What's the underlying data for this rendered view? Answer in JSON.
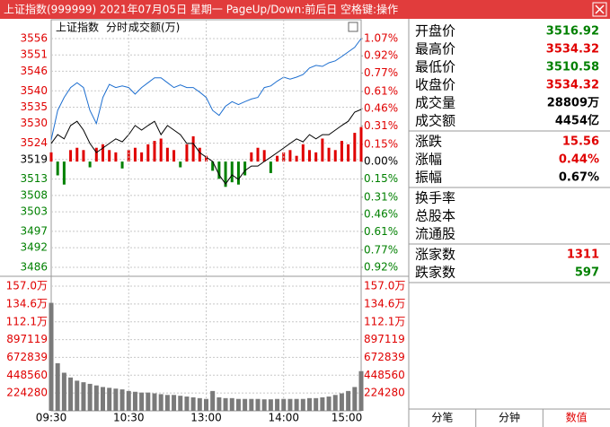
{
  "title_bar": "上证指数(999999)  2021年07月05日 星期一  PageUp/Down:前后日  空格键:操作",
  "chart_data": [
    {
      "type": "line",
      "annotations": [
        "上证指数",
        "分时",
        "成交额(万)"
      ],
      "x": [
        0,
        5,
        10,
        15,
        20,
        25,
        30,
        35,
        40,
        45,
        50,
        55,
        60,
        65,
        70,
        75,
        80,
        85,
        90,
        95,
        100,
        105,
        110,
        115,
        120,
        125,
        130,
        135,
        140,
        145,
        150,
        155,
        160,
        165,
        170,
        175,
        180,
        185,
        190,
        195,
        200,
        205,
        210,
        215,
        220,
        225,
        230,
        235,
        240
      ],
      "xlim": [
        0,
        240
      ],
      "ylim": [
        3486,
        3556
      ],
      "yticks": [
        3556,
        3551,
        3546,
        3540,
        3535,
        3530,
        3524,
        3519,
        3513,
        3508,
        3503,
        3497,
        3492,
        3486
      ],
      "y2lim": [
        -0.92,
        1.07
      ],
      "y2ticks": [
        {
          "value": 1.07,
          "label": "1.07%"
        },
        {
          "value": 0.92,
          "label": "0.92%"
        },
        {
          "value": 0.77,
          "label": "0.77%"
        },
        {
          "value": 0.61,
          "label": "0.61%"
        },
        {
          "value": 0.46,
          "label": "0.46%"
        },
        {
          "value": 0.31,
          "label": "0.31%"
        },
        {
          "value": 0.15,
          "label": "0.15%"
        },
        {
          "value": 0,
          "label": "0.00%"
        },
        {
          "value": -0.15,
          "label": "0.15%"
        },
        {
          "value": -0.31,
          "label": "0.31%"
        },
        {
          "value": -0.46,
          "label": "0.46%"
        },
        {
          "value": -0.61,
          "label": "0.61%"
        },
        {
          "value": -0.77,
          "label": "0.77%"
        },
        {
          "value": -0.92,
          "label": "0.92%"
        }
      ],
      "up_color": "#e00000",
      "down_color": "#008000",
      "grid": true,
      "series": [
        {
          "color": "#1e6fd0",
          "values": [
            3525,
            3534,
            3538,
            3541,
            3542.5,
            3541,
            3534,
            3530,
            3538,
            3542,
            3541,
            3541.5,
            3541,
            3539,
            3541,
            3542.5,
            3544,
            3544,
            3542.5,
            3541,
            3541.8,
            3541,
            3541,
            3539.6,
            3538,
            3534,
            3532.5,
            3535.3,
            3536.7,
            3535.8,
            3536.7,
            3537.5,
            3538,
            3541,
            3541.5,
            3543,
            3544.2,
            3543.6,
            3544.2,
            3545,
            3547,
            3547.8,
            3547.5,
            3548.6,
            3549.2,
            3550.5,
            3551.9,
            3553.3,
            3556
          ]
        },
        {
          "color": "#000000",
          "values": [
            3523.9,
            3526.6,
            3525.3,
            3529.4,
            3530.7,
            3528,
            3523.9,
            3521.1,
            3522.5,
            3523.9,
            3525.3,
            3524.4,
            3526.6,
            3529.4,
            3528,
            3529.4,
            3530.7,
            3526.6,
            3529.4,
            3528,
            3526.6,
            3523.9,
            3523.9,
            3521.1,
            3519.7,
            3518.4,
            3514.3,
            3511.5,
            3514.3,
            3512.9,
            3515.6,
            3517,
            3517,
            3518.4,
            3519.7,
            3521.1,
            3522.5,
            3523.9,
            3525.3,
            3524.4,
            3526.6,
            3525.3,
            3526.6,
            3526.6,
            3528,
            3529.4,
            3530.7,
            3533.5,
            3534.3
          ]
        },
        {
          "type": "bar",
          "axis": "y2",
          "color": "#e00000",
          "down_color": "#008000",
          "values": [
            0.08,
            -0.12,
            -0.2,
            0.1,
            0.12,
            0.1,
            -0.05,
            0.12,
            0.15,
            0.1,
            0.08,
            -0.06,
            0.1,
            0.12,
            0.08,
            0.15,
            0.18,
            0.2,
            0.12,
            0.1,
            -0.05,
            0.15,
            0.22,
            0.12,
            0.05,
            -0.08,
            -0.15,
            -0.22,
            -0.18,
            -0.2,
            -0.12,
            0.08,
            0.12,
            0.1,
            -0.1,
            0.05,
            0.08,
            0.1,
            0.05,
            0.15,
            0.1,
            0.08,
            0.2,
            0.12,
            0.1,
            0.18,
            0.15,
            0.25,
            0.3
          ]
        }
      ]
    },
    {
      "type": "bar",
      "x": [
        0,
        5,
        10,
        15,
        20,
        25,
        30,
        35,
        40,
        45,
        50,
        55,
        60,
        65,
        70,
        75,
        80,
        85,
        90,
        95,
        100,
        105,
        110,
        115,
        120,
        125,
        130,
        135,
        140,
        145,
        150,
        155,
        160,
        165,
        170,
        175,
        180,
        185,
        190,
        195,
        200,
        205,
        210,
        215,
        220,
        225,
        230,
        235,
        240
      ],
      "xlim": [
        0,
        240
      ],
      "xticks": [
        {
          "value": 0,
          "label": "09:30"
        },
        {
          "value": 60,
          "label": "10:30"
        },
        {
          "value": 120,
          "label": "13:00"
        },
        {
          "value": 180,
          "label": "14:00"
        },
        {
          "value": 240,
          "label": "15:00"
        }
      ],
      "ylim": [
        0,
        1570000
      ],
      "yticks": [
        {
          "value": 1570000,
          "label": "157.0万"
        },
        {
          "value": 1346000,
          "label": "134.6万"
        },
        {
          "value": 1121000,
          "label": "112.1万"
        },
        897119,
        672839,
        448560,
        224280
      ],
      "tick_color": "#e00000",
      "color": "#7a7a7a",
      "grid": true,
      "values": [
        1360000,
        600000,
        480000,
        420000,
        380000,
        360000,
        340000,
        320000,
        300000,
        290000,
        280000,
        270000,
        250000,
        240000,
        230000,
        230000,
        220000,
        210000,
        200000,
        200000,
        190000,
        180000,
        170000,
        160000,
        150000,
        250000,
        170000,
        160000,
        160000,
        150000,
        150000,
        150000,
        150000,
        145000,
        145000,
        150000,
        150000,
        150000,
        150000,
        150000,
        160000,
        160000,
        170000,
        180000,
        200000,
        220000,
        250000,
        300000,
        500000
      ]
    }
  ],
  "panel": {
    "groups": [
      [
        {
          "label": "开盘价",
          "value": "3516.92",
          "color": "#008000"
        },
        {
          "label": "最高价",
          "value": "3534.32",
          "color": "#e00000"
        },
        {
          "label": "最低价",
          "value": "3510.58",
          "color": "#008000"
        },
        {
          "label": "收盘价",
          "value": "3534.32",
          "color": "#e00000"
        },
        {
          "label": "成交量",
          "value": "28809万",
          "color": "#000000"
        },
        {
          "label": "成交额",
          "value": "4454亿",
          "color": "#000000"
        }
      ],
      [
        {
          "label": "涨跌",
          "value": "15.56",
          "color": "#e00000"
        },
        {
          "label": "涨幅",
          "value": "0.44%",
          "color": "#e00000"
        },
        {
          "label": "振幅",
          "value": "0.67%",
          "color": "#000000"
        }
      ],
      [
        {
          "label": "换手率"
        },
        {
          "label": "总股本"
        },
        {
          "label": "流通股"
        }
      ],
      [
        {
          "label": "涨家数",
          "value": "1311",
          "color": "#e00000"
        },
        {
          "label": "跌家数",
          "value": "597",
          "color": "#008000"
        }
      ]
    ]
  },
  "tabs": {
    "items": [
      "分笔",
      "分钟",
      "数值"
    ],
    "selected": 2,
    "selected_color": "#e00000"
  }
}
